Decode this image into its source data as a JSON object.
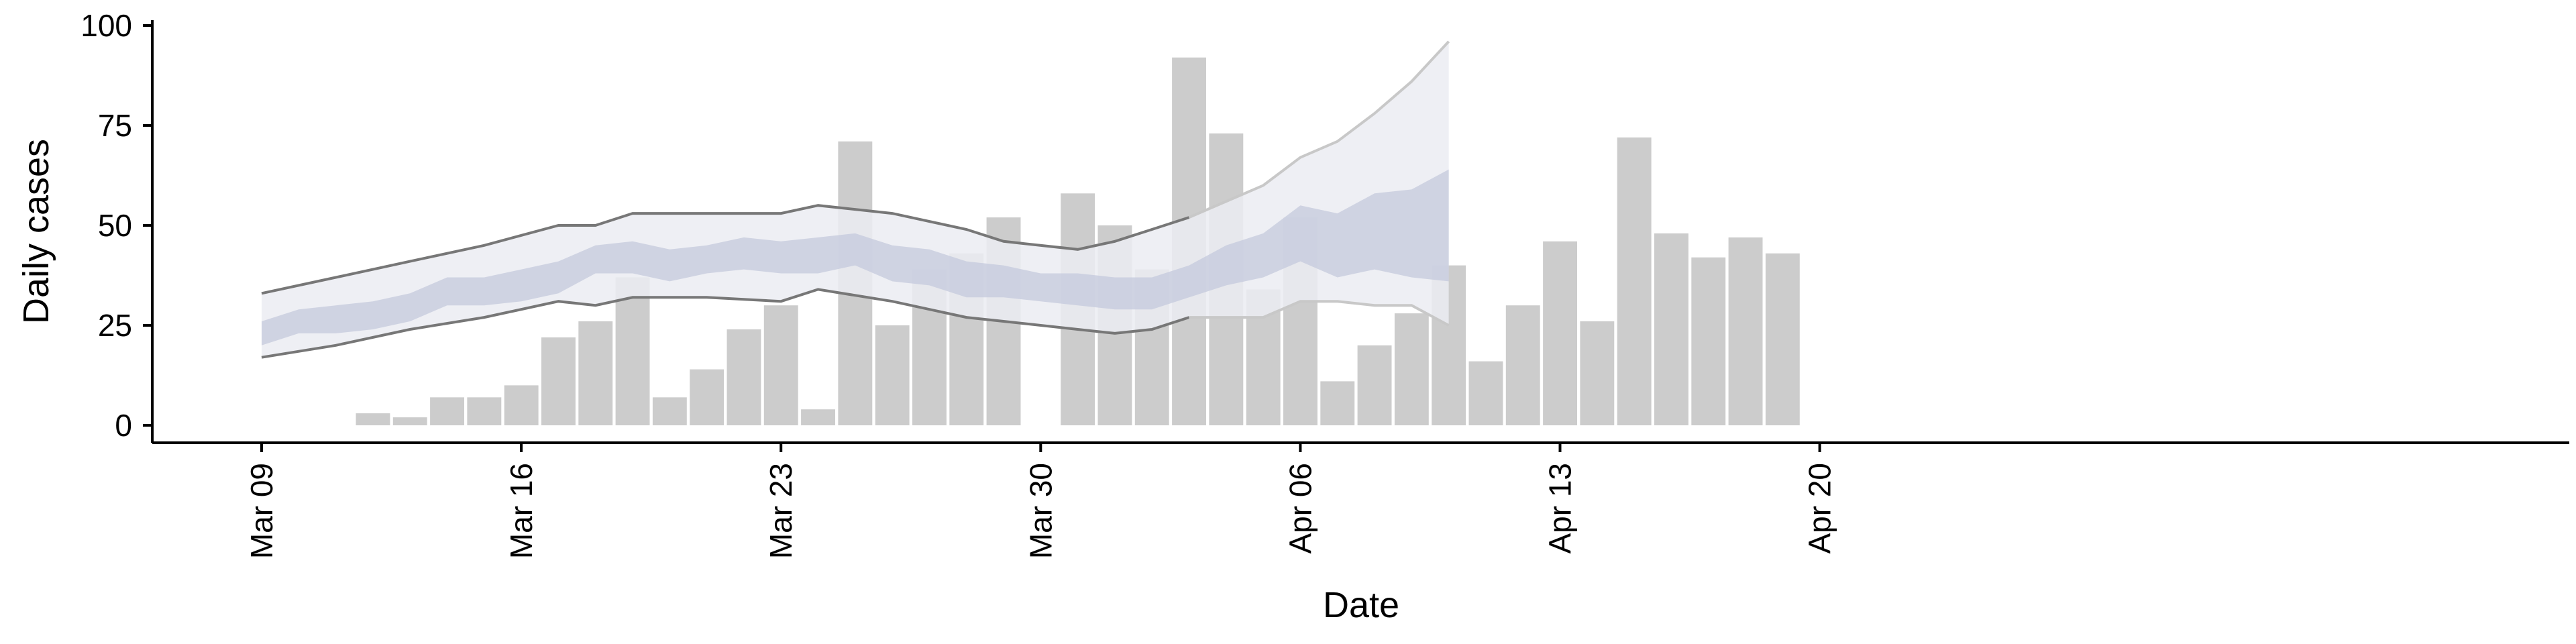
{
  "chart_data": {
    "type": "bar",
    "title": "",
    "xlabel": "Date",
    "ylabel": "Daily cases",
    "ylim": [
      -4,
      100
    ],
    "xlim": [
      "2020-03-06",
      "2020-04-21"
    ],
    "grid": false,
    "legend": "none",
    "x_ticks": [
      {
        "date": "2020-03-09",
        "label": "Mar 09"
      },
      {
        "date": "2020-03-16",
        "label": "Mar 16"
      },
      {
        "date": "2020-03-23",
        "label": "Mar 23"
      },
      {
        "date": "2020-03-30",
        "label": "Mar 30"
      },
      {
        "date": "2020-04-06",
        "label": "Apr 06"
      },
      {
        "date": "2020-04-13",
        "label": "Apr 13"
      },
      {
        "date": "2020-04-20",
        "label": "Apr 20"
      }
    ],
    "y_ticks": [
      0,
      25,
      50,
      75,
      100
    ],
    "bars": {
      "color": "#cccccc",
      "dates": [
        "2020-03-12",
        "2020-03-13",
        "2020-03-14",
        "2020-03-15",
        "2020-03-16",
        "2020-03-17",
        "2020-03-18",
        "2020-03-19",
        "2020-03-20",
        "2020-03-21",
        "2020-03-22",
        "2020-03-23",
        "2020-03-24",
        "2020-03-25",
        "2020-03-26",
        "2020-03-27",
        "2020-03-28",
        "2020-03-29",
        "2020-03-31",
        "2020-04-01",
        "2020-04-02",
        "2020-04-03",
        "2020-04-04",
        "2020-04-05",
        "2020-04-06",
        "2020-04-07",
        "2020-04-08",
        "2020-04-09",
        "2020-04-10",
        "2020-04-11",
        "2020-04-12",
        "2020-04-13",
        "2020-04-14",
        "2020-04-15",
        "2020-04-16",
        "2020-04-17",
        "2020-04-18",
        "2020-04-19"
      ],
      "values": [
        3,
        2,
        7,
        7,
        10,
        22,
        26,
        37,
        7,
        14,
        24,
        30,
        4,
        71,
        25,
        39,
        43,
        52,
        58,
        50,
        39,
        92,
        73,
        34,
        52,
        11,
        20,
        28,
        40,
        16,
        30,
        46,
        26,
        72,
        48,
        42,
        47,
        43
      ]
    },
    "outer_band": {
      "color": "#ebecf2",
      "dates": [
        "2020-03-09",
        "2020-03-11",
        "2020-03-13",
        "2020-03-15",
        "2020-03-17",
        "2020-03-18",
        "2020-03-19",
        "2020-03-21",
        "2020-03-23",
        "2020-03-24",
        "2020-03-26",
        "2020-03-28",
        "2020-03-29",
        "2020-03-31",
        "2020-04-01",
        "2020-04-02",
        "2020-04-03",
        "2020-04-05",
        "2020-04-06",
        "2020-04-07",
        "2020-04-08",
        "2020-04-09",
        "2020-04-10"
      ],
      "lower": [
        17,
        20,
        24,
        27,
        31,
        30,
        32,
        32,
        31,
        34,
        31,
        27,
        26,
        24,
        23,
        24,
        27,
        27,
        31,
        31,
        30,
        30,
        25
      ],
      "upper": [
        33,
        37,
        41,
        45,
        50,
        50,
        53,
        53,
        53,
        55,
        53,
        49,
        46,
        44,
        46,
        49,
        52,
        60,
        67,
        71,
        78,
        86,
        96
      ]
    },
    "inner_band": {
      "color": "#c4c9dc",
      "dates": [
        "2020-03-09",
        "2020-03-10",
        "2020-03-11",
        "2020-03-12",
        "2020-03-13",
        "2020-03-14",
        "2020-03-15",
        "2020-03-16",
        "2020-03-17",
        "2020-03-18",
        "2020-03-19",
        "2020-03-20",
        "2020-03-21",
        "2020-03-22",
        "2020-03-23",
        "2020-03-24",
        "2020-03-25",
        "2020-03-26",
        "2020-03-27",
        "2020-03-28",
        "2020-03-29",
        "2020-03-30",
        "2020-03-31",
        "2020-04-01",
        "2020-04-02",
        "2020-04-03",
        "2020-04-04",
        "2020-04-05",
        "2020-04-06",
        "2020-04-07",
        "2020-04-08",
        "2020-04-09",
        "2020-04-10"
      ],
      "lower": [
        20,
        23,
        23,
        24,
        26,
        30,
        30,
        31,
        33,
        38,
        38,
        36,
        38,
        39,
        38,
        38,
        40,
        36,
        35,
        32,
        32,
        31,
        30,
        29,
        29,
        32,
        35,
        37,
        41,
        37,
        39,
        37,
        36
      ],
      "upper": [
        26,
        29,
        30,
        31,
        33,
        37,
        37,
        39,
        41,
        45,
        46,
        44,
        45,
        47,
        46,
        47,
        48,
        45,
        44,
        41,
        40,
        38,
        38,
        37,
        37,
        40,
        45,
        48,
        55,
        53,
        58,
        59,
        64
      ]
    },
    "boundary_lines": {
      "color": "#777777",
      "lower": [
        17,
        20,
        24,
        27,
        31,
        30,
        32,
        32,
        31,
        34,
        31,
        27,
        26,
        24,
        23,
        24,
        27,
        27,
        31,
        31,
        30,
        30,
        25
      ],
      "upper": [
        33,
        37,
        41,
        45,
        50,
        50,
        53,
        53,
        53,
        55,
        53,
        49,
        46,
        44,
        46,
        49,
        52,
        60,
        67,
        71,
        78,
        86,
        96
      ]
    },
    "projection_start": "2020-04-03"
  }
}
